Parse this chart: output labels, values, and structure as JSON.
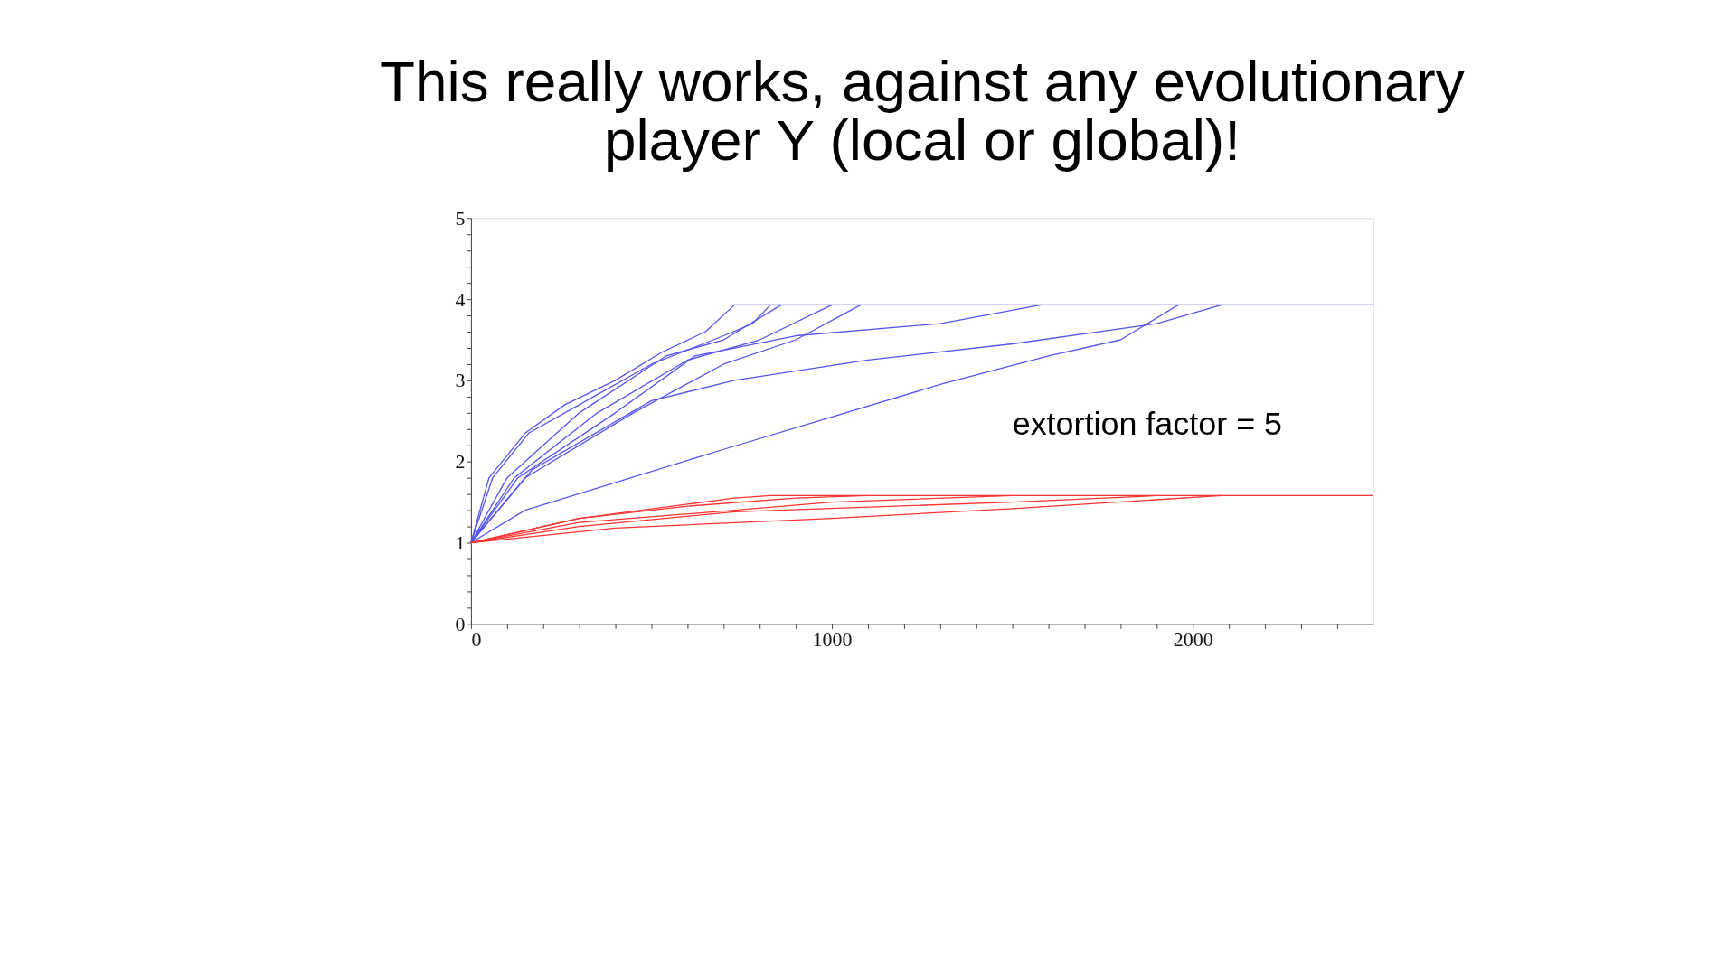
{
  "chart_data": {
    "type": "line",
    "title": [
      "This really works, against any evolutionary",
      "player Y (local or global)!"
    ],
    "annotations": [
      "extortion factor = 5"
    ],
    "xlim": [
      0,
      2500
    ],
    "ylim": [
      0,
      5
    ],
    "xticks": [
      0,
      {
        "value": 100,
        "label": null
      },
      {
        "value": 200,
        "label": null
      },
      {
        "value": 300,
        "label": null
      },
      {
        "value": 400,
        "label": null
      },
      {
        "value": 500,
        "label": null
      },
      {
        "value": 600,
        "label": null
      },
      {
        "value": 700,
        "label": null
      },
      {
        "value": 800,
        "label": null
      },
      {
        "value": 900,
        "label": null
      },
      1000,
      {
        "value": 1100,
        "label": null
      },
      {
        "value": 1200,
        "label": null
      },
      {
        "value": 1300,
        "label": null
      },
      {
        "value": 1400,
        "label": null
      },
      {
        "value": 1500,
        "label": null
      },
      {
        "value": 1600,
        "label": null
      },
      {
        "value": 1700,
        "label": null
      },
      {
        "value": 1800,
        "label": null
      },
      {
        "value": 1900,
        "label": null
      },
      2000,
      {
        "value": 2100,
        "label": null
      },
      {
        "value": 2200,
        "label": null
      },
      {
        "value": 2300,
        "label": null
      },
      {
        "value": 2400,
        "label": null
      }
    ],
    "yticks": [
      0,
      {
        "value": 0.2,
        "label": null
      },
      {
        "value": 0.4,
        "label": null
      },
      {
        "value": 0.6,
        "label": null
      },
      {
        "value": 0.8,
        "label": null
      },
      1,
      {
        "value": 1.2,
        "label": null
      },
      {
        "value": 1.4,
        "label": null
      },
      {
        "value": 1.6,
        "label": null
      },
      {
        "value": 1.8,
        "label": null
      },
      2,
      {
        "value": 2.2,
        "label": null
      },
      {
        "value": 2.4,
        "label": null
      },
      {
        "value": 2.6,
        "label": null
      },
      {
        "value": 2.8,
        "label": null
      },
      3,
      {
        "value": 3.2,
        "label": null
      },
      {
        "value": 3.4,
        "label": null
      },
      {
        "value": 3.6,
        "label": null
      },
      {
        "value": 3.8,
        "label": null
      },
      4,
      {
        "value": 4.2,
        "label": null
      },
      {
        "value": 4.4,
        "label": null
      },
      {
        "value": 4.6,
        "label": null
      },
      {
        "value": 4.8,
        "label": null
      },
      5
    ],
    "grid": false,
    "legend": false,
    "marker": "none",
    "line_style": "solid",
    "series": [
      {
        "color": "#5555ee",
        "x": [
          0,
          50,
          150,
          260,
          400,
          530,
          650,
          730,
          2500
        ],
        "values": [
          1,
          1.8,
          2.35,
          2.7,
          3.0,
          3.35,
          3.6,
          3.93,
          3.93
        ]
      },
      {
        "color": "#5555ee",
        "x": [
          0,
          60,
          160,
          280,
          500,
          700,
          780,
          830
        ],
        "values": [
          1,
          1.8,
          2.35,
          2.65,
          3.2,
          3.55,
          3.7,
          3.93
        ]
      },
      {
        "color": "#5555ee",
        "x": [
          0,
          100,
          300,
          540,
          700,
          860
        ],
        "values": [
          1,
          1.8,
          2.6,
          3.3,
          3.5,
          3.93
        ]
      },
      {
        "color": "#5555ee",
        "x": [
          0,
          120,
          350,
          600,
          800,
          1000
        ],
        "values": [
          1,
          1.8,
          2.6,
          3.25,
          3.5,
          3.93
        ]
      },
      {
        "color": "#5555ee",
        "x": [
          0,
          150,
          450,
          700,
          900,
          1080
        ],
        "values": [
          1,
          1.8,
          2.6,
          3.2,
          3.5,
          3.93
        ]
      },
      {
        "color": "#5555ee",
        "x": [
          0,
          130,
          400,
          620,
          900,
          1300,
          1580
        ],
        "values": [
          1,
          1.8,
          2.6,
          3.3,
          3.55,
          3.7,
          3.93
        ]
      },
      {
        "color": "#5555ee",
        "x": [
          0,
          170,
          500,
          730,
          1100,
          1500,
          1900,
          2080
        ],
        "values": [
          1,
          1.9,
          2.75,
          3.0,
          3.25,
          3.45,
          3.7,
          3.93
        ]
      },
      {
        "color": "#5555ee",
        "x": [
          0,
          150,
          700,
          1000,
          1300,
          1600,
          1800,
          1960
        ],
        "values": [
          1,
          1.4,
          2.15,
          2.55,
          2.95,
          3.3,
          3.5,
          3.93
        ]
      },
      {
        "color": "#ff3333",
        "x": [
          0,
          300,
          730,
          830,
          2500
        ],
        "values": [
          1,
          1.3,
          1.55,
          1.58,
          1.58
        ]
      },
      {
        "color": "#ff3333",
        "x": [
          0,
          300,
          600,
          900,
          1100
        ],
        "values": [
          1,
          1.3,
          1.45,
          1.55,
          1.58
        ]
      },
      {
        "color": "#ff3333",
        "x": [
          0,
          300,
          730,
          1000,
          1500
        ],
        "values": [
          1,
          1.25,
          1.4,
          1.5,
          1.58
        ]
      },
      {
        "color": "#ff3333",
        "x": [
          0,
          300,
          730,
          1500,
          1900
        ],
        "values": [
          1,
          1.2,
          1.38,
          1.5,
          1.58
        ]
      },
      {
        "color": "#ff3333",
        "x": [
          0,
          400,
          1000,
          1500,
          2080
        ],
        "values": [
          1,
          1.18,
          1.3,
          1.42,
          1.58
        ]
      }
    ]
  }
}
